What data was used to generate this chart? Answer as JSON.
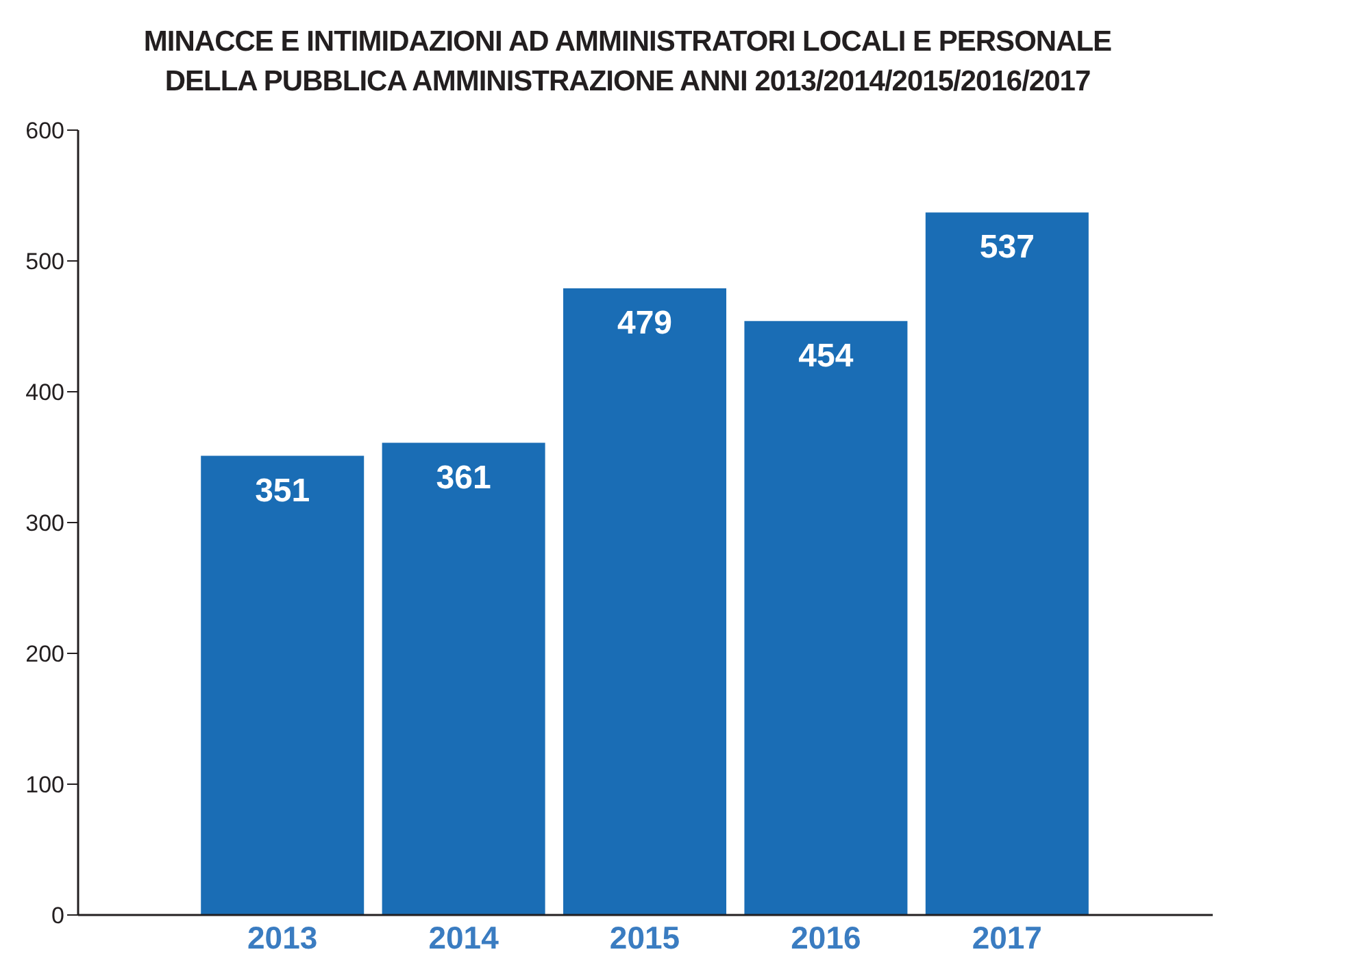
{
  "chart_data": {
    "type": "bar",
    "title": "MINACCE E INTIMIDAZIONI AD AMMINISTRATORI LOCALI E PERSONALE DELLA PUBBLICA AMMINISTRAZIONE ANNI 2013/2014/2015/2016/2017",
    "categories": [
      "2013",
      "2014",
      "2015",
      "2016",
      "2017"
    ],
    "values": [
      351,
      361,
      479,
      454,
      537
    ],
    "color": "#1a6db5",
    "ylim": [
      0,
      600
    ],
    "yticks": [
      0,
      100,
      200,
      300,
      400,
      500,
      600
    ],
    "grid": false,
    "data_labels": true
  }
}
